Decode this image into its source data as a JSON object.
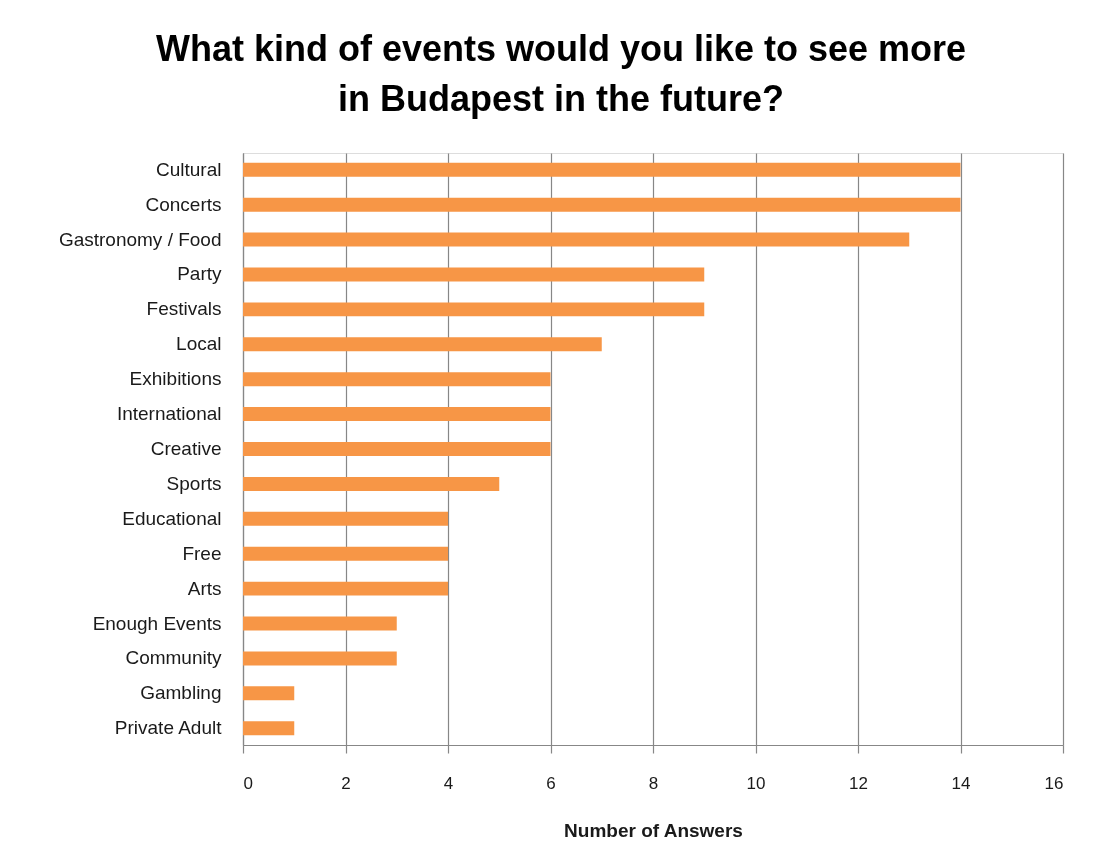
{
  "chart_data": {
    "type": "bar",
    "orientation": "horizontal",
    "title": "What kind of events would you like to see more\nin Budapest in the future?",
    "xlabel": "Number of Answers",
    "categories": [
      "Cultural",
      "Concerts",
      "Gastronomy / Food",
      "Party",
      "Festivals",
      "Local",
      "Exhibitions",
      "International",
      "Creative",
      "Sports",
      "Educational",
      "Free",
      "Arts",
      "Enough Events",
      "Community",
      "Gambling",
      "Private Adult"
    ],
    "values": [
      14,
      14,
      13,
      9,
      9,
      7,
      6,
      6,
      6,
      5,
      4,
      4,
      4,
      3,
      3,
      1,
      1
    ],
    "color": "#f79646",
    "xlim": [
      0,
      16
    ],
    "xticks": [
      0,
      2,
      4,
      6,
      8,
      10,
      12,
      14,
      16
    ],
    "grid": "x"
  }
}
